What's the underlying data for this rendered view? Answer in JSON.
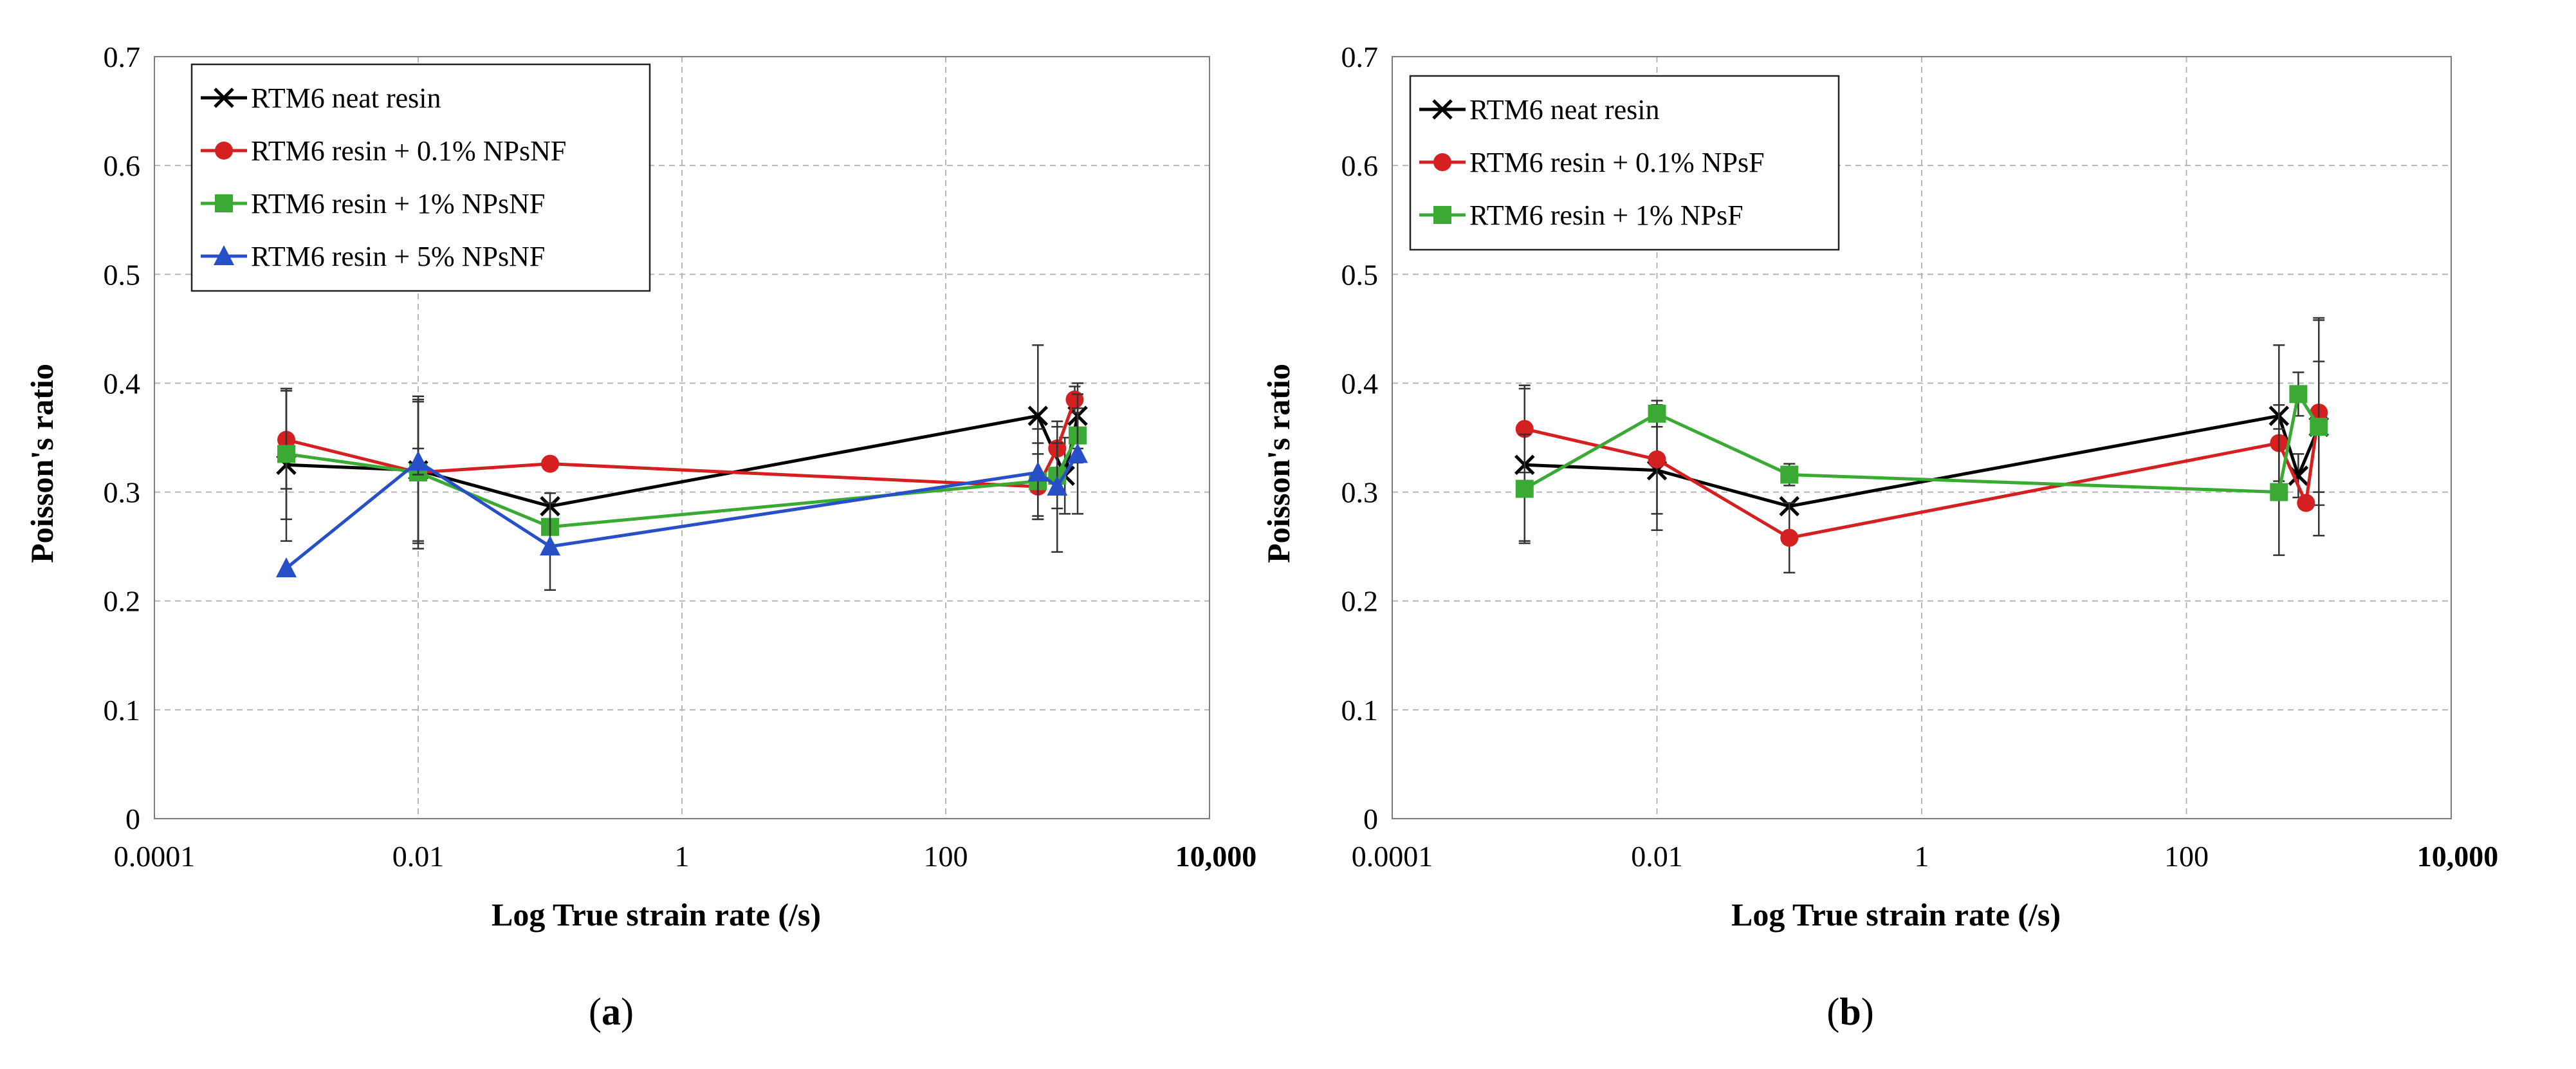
{
  "chart_data": [
    {
      "type": "line",
      "panel_label": "a",
      "xscale": "log",
      "xlim": [
        0.0001,
        10000
      ],
      "ylim": [
        0,
        0.7
      ],
      "xticks": [
        0.0001,
        0.01,
        1,
        100,
        10000
      ],
      "xtick_labels": [
        "0.0001",
        "0.01",
        "1",
        "100",
        "10,000"
      ],
      "yticks": [
        0,
        0.1,
        0.2,
        0.3,
        0.4,
        0.5,
        0.6,
        0.7
      ],
      "ytick_labels": [
        "0",
        "0.1",
        "0.2",
        "0.3",
        "0.4",
        "0.5",
        "0.6",
        "0.7"
      ],
      "xlabel": "Log True strain rate (/s)",
      "ylabel": "Poisson's ratio",
      "grid": true,
      "legend_position": "top-left",
      "series": [
        {
          "name": "RTM6 neat resin",
          "color": "#000000",
          "marker": "x",
          "x": [
            0.001,
            0.01,
            0.1,
            500,
            800,
            1000
          ],
          "y": [
            0.325,
            0.32,
            0.287,
            0.37,
            0.315,
            0.37
          ],
          "err": [
            0.07,
            0.065,
            0.012,
            0.065,
            0.035,
            0.03
          ]
        },
        {
          "name": "RTM6 resin + 0.1% NPsNF",
          "color": "#d42020",
          "marker": "circle",
          "x": [
            0.001,
            0.01,
            0.1,
            500,
            700,
            950
          ],
          "y": [
            0.348,
            0.318,
            0.326,
            0.305,
            0.34,
            0.385
          ],
          "err": [
            0.045,
            0.065,
            0.0,
            0.03,
            0.02,
            0.012
          ]
        },
        {
          "name": "RTM6 resin + 1% NPsNF",
          "color": "#3aaa35",
          "marker": "square",
          "x": [
            0.001,
            0.01,
            0.1,
            500,
            700,
            1000
          ],
          "y": [
            0.335,
            0.318,
            0.268,
            0.31,
            0.315,
            0.352
          ],
          "err": [
            0.06,
            0.07,
            0.0,
            0.035,
            0.03,
            0.025
          ]
        },
        {
          "name": "RTM6 resin + 5% NPsNF",
          "color": "#2750c8",
          "marker": "triangle",
          "x": [
            0.001,
            0.01,
            0.1,
            500,
            700,
            1000
          ],
          "y": [
            0.23,
            0.328,
            0.25,
            0.318,
            0.305,
            0.335
          ],
          "err": [
            0.0,
            0.012,
            0.04,
            0.04,
            0.06,
            0.055
          ]
        }
      ]
    },
    {
      "type": "line",
      "panel_label": "b",
      "xscale": "log",
      "xlim": [
        0.0001,
        10000
      ],
      "ylim": [
        0,
        0.7
      ],
      "xticks": [
        0.0001,
        0.01,
        1,
        100,
        10000
      ],
      "xtick_labels": [
        "0.0001",
        "0.01",
        "1",
        "100",
        "10,000"
      ],
      "yticks": [
        0,
        0.1,
        0.2,
        0.3,
        0.4,
        0.5,
        0.6,
        0.7
      ],
      "ytick_labels": [
        "0",
        "0.1",
        "0.2",
        "0.3",
        "0.4",
        "0.5",
        "0.6",
        "0.7"
      ],
      "xlabel": "Log True strain rate (/s)",
      "ylabel": "Poisson's ratio",
      "grid": true,
      "legend_position": "top-left",
      "series": [
        {
          "name": "RTM6 neat resin",
          "color": "#000000",
          "marker": "x",
          "x": [
            0.001,
            0.01,
            0.1,
            500,
            700,
            1000
          ],
          "y": [
            0.325,
            0.32,
            0.287,
            0.37,
            0.315,
            0.36
          ],
          "err": [
            0.07,
            0.055,
            0.0,
            0.065,
            0.02,
            0.06
          ]
        },
        {
          "name": "RTM6 resin + 0.1% NPsF",
          "color": "#d42020",
          "marker": "circle",
          "x": [
            0.001,
            0.01,
            0.1,
            500,
            800,
            1000
          ],
          "y": [
            0.358,
            0.33,
            0.258,
            0.345,
            0.29,
            0.373
          ],
          "err": [
            0.04,
            0.05,
            0.032,
            0.035,
            0.0,
            0.085
          ]
        },
        {
          "name": "RTM6 resin + 1% NPsF",
          "color": "#3aaa35",
          "marker": "square",
          "x": [
            0.001,
            0.01,
            0.1,
            500,
            700,
            1000
          ],
          "y": [
            0.303,
            0.372,
            0.316,
            0.3,
            0.39,
            0.36
          ],
          "err": [
            0.05,
            0.012,
            0.01,
            0.058,
            0.02,
            0.1
          ]
        }
      ]
    }
  ]
}
